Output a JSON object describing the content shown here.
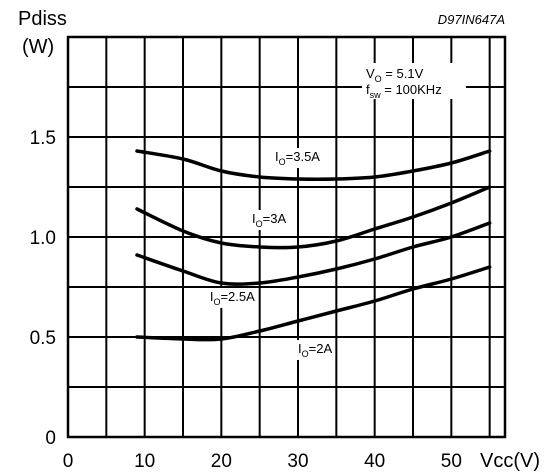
{
  "chart_data": {
    "type": "line",
    "figure_code": "D97IN647A",
    "ylabel_line1": "Pdiss",
    "ylabel_line2": "(W)",
    "xlabel": "Vcc(V)",
    "xlim": [
      0,
      57
    ],
    "ylim": [
      0,
      2.0
    ],
    "x_ticks": [
      "0",
      "10",
      "20",
      "30",
      "40",
      "50"
    ],
    "y_ticks": [
      {
        "value": 0,
        "label": "0"
      },
      {
        "value": 0.5,
        "label": "0.5"
      },
      {
        "value": 1.0,
        "label": "1.0"
      },
      {
        "value": 1.5,
        "label": "1.5"
      }
    ],
    "grid": true,
    "conditions": {
      "vo_sym": "V",
      "vo_sub": "O",
      "vo_val": " = 5.1V",
      "fsw_sym": "f",
      "fsw_sub": "sw",
      "fsw_val": " = 100KHz"
    },
    "series": [
      {
        "label_sym": "I",
        "label_sub": "O",
        "label_val": "=3.5A",
        "label_at": [
          27,
          1.38
        ],
        "x": [
          9,
          15,
          20,
          25,
          30,
          35,
          40,
          45,
          50,
          55
        ],
        "y": [
          1.43,
          1.39,
          1.33,
          1.3,
          1.29,
          1.29,
          1.3,
          1.33,
          1.37,
          1.43
        ]
      },
      {
        "label_sym": "I",
        "label_sub": "O",
        "label_val": "=3A",
        "label_at": [
          24,
          1.07
        ],
        "x": [
          9,
          15,
          20,
          25,
          30,
          35,
          40,
          45,
          50,
          55
        ],
        "y": [
          1.14,
          1.03,
          0.97,
          0.95,
          0.95,
          0.98,
          1.04,
          1.1,
          1.17,
          1.25
        ]
      },
      {
        "label_sym": "I",
        "label_sub": "O",
        "label_val": "=2.5A",
        "label_at": [
          18.5,
          0.68
        ],
        "x": [
          9,
          15,
          20,
          25,
          30,
          35,
          40,
          45,
          50,
          55
        ],
        "y": [
          0.91,
          0.83,
          0.77,
          0.77,
          0.8,
          0.84,
          0.89,
          0.95,
          1.0,
          1.07
        ]
      },
      {
        "label_sym": "I",
        "label_sub": "O",
        "label_val": "=2A",
        "label_at": [
          30,
          0.42
        ],
        "x": [
          9,
          15,
          20,
          25,
          30,
          35,
          40,
          45,
          50,
          55
        ],
        "y": [
          0.5,
          0.49,
          0.49,
          0.53,
          0.58,
          0.63,
          0.68,
          0.74,
          0.79,
          0.85
        ]
      }
    ]
  }
}
